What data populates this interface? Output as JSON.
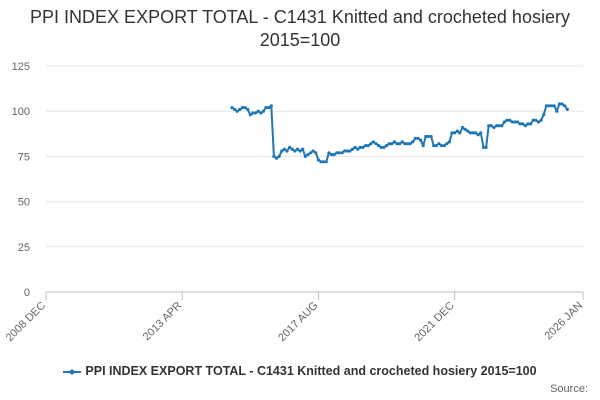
{
  "title": "PPI INDEX EXPORT TOTAL - C1431 Knitted and crocheted hosiery 2015=100",
  "source_label": "Source:",
  "chart_data": {
    "type": "line",
    "title": "PPI INDEX EXPORT TOTAL - C1431 Knitted and crocheted hosiery 2015=100",
    "xlabel": "",
    "ylabel": "",
    "x_range": [
      "2008-12",
      "2026-01"
    ],
    "x_ticks": [
      "2008 DEC",
      "2013 APR",
      "2017 AUG",
      "2021 DEC",
      "2026 JAN"
    ],
    "ylim": [
      0,
      125
    ],
    "y_ticks": [
      0,
      25,
      50,
      75,
      100,
      125
    ],
    "grid": "horizontal",
    "legend_position": "bottom",
    "series_color": "#1f77b4",
    "series": [
      {
        "name": "PPI INDEX EXPORT TOTAL - C1431 Knitted and crocheted hosiery 2015=100",
        "points": [
          [
            "2014-11",
            102
          ],
          [
            "2014-12",
            101
          ],
          [
            "2015-01",
            100
          ],
          [
            "2015-02",
            101
          ],
          [
            "2015-03",
            102
          ],
          [
            "2015-04",
            102
          ],
          [
            "2015-05",
            101
          ],
          [
            "2015-06",
            98
          ],
          [
            "2015-07",
            99
          ],
          [
            "2015-08",
            99
          ],
          [
            "2015-09",
            100
          ],
          [
            "2015-10",
            99
          ],
          [
            "2015-11",
            100
          ],
          [
            "2015-12",
            102
          ],
          [
            "2016-01",
            102
          ],
          [
            "2016-02",
            103
          ],
          [
            "2016-03",
            75
          ],
          [
            "2016-04",
            74
          ],
          [
            "2016-05",
            75
          ],
          [
            "2016-06",
            78
          ],
          [
            "2016-07",
            79
          ],
          [
            "2016-08",
            78
          ],
          [
            "2016-09",
            80
          ],
          [
            "2016-10",
            79
          ],
          [
            "2016-11",
            78
          ],
          [
            "2016-12",
            79
          ],
          [
            "2017-01",
            78
          ],
          [
            "2017-02",
            79
          ],
          [
            "2017-03",
            75
          ],
          [
            "2017-04",
            76
          ],
          [
            "2017-05",
            77
          ],
          [
            "2017-06",
            78
          ],
          [
            "2017-07",
            77
          ],
          [
            "2017-08",
            73
          ],
          [
            "2017-09",
            72
          ],
          [
            "2017-10",
            72
          ],
          [
            "2017-11",
            72
          ],
          [
            "2017-12",
            77
          ],
          [
            "2018-01",
            76
          ],
          [
            "2018-02",
            76
          ],
          [
            "2018-03",
            77
          ],
          [
            "2018-04",
            77
          ],
          [
            "2018-05",
            77
          ],
          [
            "2018-06",
            78
          ],
          [
            "2018-07",
            78
          ],
          [
            "2018-08",
            78
          ],
          [
            "2018-09",
            79
          ],
          [
            "2018-10",
            80
          ],
          [
            "2018-11",
            79
          ],
          [
            "2018-12",
            80
          ],
          [
            "2019-01",
            80
          ],
          [
            "2019-02",
            81
          ],
          [
            "2019-03",
            81
          ],
          [
            "2019-04",
            82
          ],
          [
            "2019-05",
            83
          ],
          [
            "2019-06",
            82
          ],
          [
            "2019-07",
            81
          ],
          [
            "2019-08",
            80
          ],
          [
            "2019-09",
            80
          ],
          [
            "2019-10",
            81
          ],
          [
            "2019-11",
            82
          ],
          [
            "2019-12",
            82
          ],
          [
            "2020-01",
            83
          ],
          [
            "2020-02",
            82
          ],
          [
            "2020-03",
            82
          ],
          [
            "2020-04",
            83
          ],
          [
            "2020-05",
            82
          ],
          [
            "2020-06",
            82
          ],
          [
            "2020-07",
            82
          ],
          [
            "2020-08",
            83
          ],
          [
            "2020-09",
            85
          ],
          [
            "2020-10",
            85
          ],
          [
            "2020-11",
            84
          ],
          [
            "2020-12",
            81
          ],
          [
            "2021-01",
            86
          ],
          [
            "2021-02",
            86
          ],
          [
            "2021-03",
            86
          ],
          [
            "2021-04",
            81
          ],
          [
            "2021-05",
            81
          ],
          [
            "2021-06",
            82
          ],
          [
            "2021-07",
            81
          ],
          [
            "2021-08",
            81
          ],
          [
            "2021-09",
            82
          ],
          [
            "2021-10",
            83
          ],
          [
            "2021-11",
            88
          ],
          [
            "2021-12",
            88
          ],
          [
            "2022-01",
            89
          ],
          [
            "2022-02",
            88
          ],
          [
            "2022-03",
            91
          ],
          [
            "2022-04",
            90
          ],
          [
            "2022-05",
            89
          ],
          [
            "2022-06",
            88
          ],
          [
            "2022-07",
            88
          ],
          [
            "2022-08",
            88
          ],
          [
            "2022-09",
            87
          ],
          [
            "2022-10",
            88
          ],
          [
            "2022-11",
            80
          ],
          [
            "2022-12",
            80
          ],
          [
            "2023-01",
            92
          ],
          [
            "2023-02",
            92
          ],
          [
            "2023-03",
            91
          ],
          [
            "2023-04",
            92
          ],
          [
            "2023-05",
            92
          ],
          [
            "2023-06",
            92
          ],
          [
            "2023-07",
            94
          ],
          [
            "2023-08",
            95
          ],
          [
            "2023-09",
            95
          ],
          [
            "2023-10",
            94
          ],
          [
            "2023-11",
            94
          ],
          [
            "2023-12",
            94
          ],
          [
            "2024-01",
            93
          ],
          [
            "2024-02",
            93
          ],
          [
            "2024-03",
            92
          ],
          [
            "2024-04",
            93
          ],
          [
            "2024-05",
            93
          ],
          [
            "2024-06",
            95
          ],
          [
            "2024-07",
            95
          ],
          [
            "2024-08",
            94
          ],
          [
            "2024-09",
            95
          ],
          [
            "2024-10",
            98
          ],
          [
            "2024-11",
            103
          ],
          [
            "2024-12",
            103
          ],
          [
            "2025-01",
            103
          ],
          [
            "2025-02",
            103
          ],
          [
            "2025-03",
            100
          ],
          [
            "2025-04",
            104
          ],
          [
            "2025-05",
            104
          ],
          [
            "2025-06",
            103
          ],
          [
            "2025-07",
            101
          ]
        ]
      }
    ]
  }
}
